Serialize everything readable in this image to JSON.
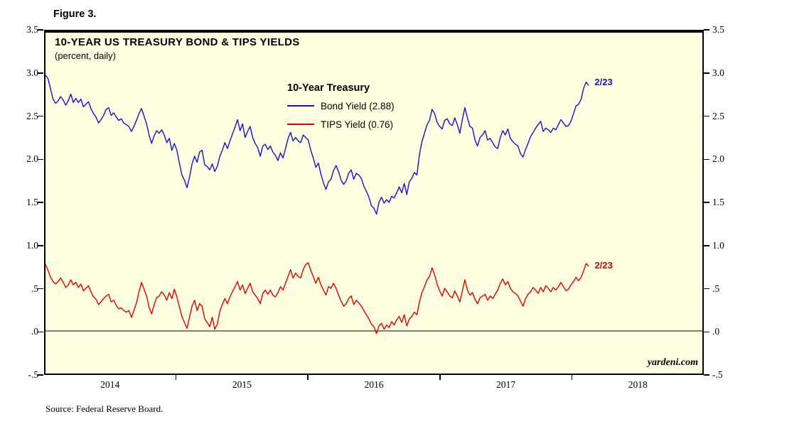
{
  "figure_label": "Figure 3.",
  "source": "Source: Federal Reserve Board.",
  "watermark": "yardeni.com",
  "chart_data": {
    "type": "line",
    "title": "10-YEAR US TREASURY BOND & TIPS YIELDS",
    "subtitle": "(percent, daily)",
    "legend_title": "10-Year Treasury",
    "legend_position": "top-center",
    "grid": false,
    "plot_bg": "#FFFFE2",
    "x_domain": [
      2014.0,
      2019.0
    ],
    "y_domain": [
      -0.5,
      3.5
    ],
    "x_start": 2014.0,
    "x_step": 0.019231,
    "y_ticks": [
      "3.5",
      "3.0",
      "2.5",
      "2.0",
      "1.5",
      "1.0",
      ".5",
      ".0",
      "-.5"
    ],
    "y_tick_values": [
      3.5,
      3.0,
      2.5,
      2.0,
      1.5,
      1.0,
      0.5,
      0.0,
      -0.5
    ],
    "x_tick_labels": [
      "2014",
      "2015",
      "2016",
      "2017",
      "2018"
    ],
    "x_tick_centers": [
      2014.5,
      2015.5,
      2016.5,
      2017.5,
      2018.5
    ],
    "zero_line": 0.0,
    "series": [
      {
        "name": "Bond Yield (2.88)",
        "color": "#1212CC",
        "end_label": "2/23",
        "last_value": 2.88,
        "values": [
          3.0,
          2.96,
          2.84,
          2.72,
          2.67,
          2.7,
          2.75,
          2.71,
          2.65,
          2.7,
          2.78,
          2.68,
          2.73,
          2.68,
          2.72,
          2.63,
          2.66,
          2.69,
          2.61,
          2.55,
          2.51,
          2.44,
          2.48,
          2.53,
          2.6,
          2.62,
          2.53,
          2.56,
          2.51,
          2.47,
          2.49,
          2.44,
          2.42,
          2.4,
          2.34,
          2.4,
          2.47,
          2.55,
          2.61,
          2.52,
          2.43,
          2.3,
          2.2,
          2.29,
          2.35,
          2.32,
          2.36,
          2.3,
          2.21,
          2.26,
          2.12,
          2.2,
          2.12,
          1.97,
          1.83,
          1.77,
          1.68,
          1.8,
          1.96,
          2.05,
          1.98,
          2.1,
          2.12,
          1.95,
          1.93,
          1.89,
          1.96,
          1.87,
          1.93,
          2.05,
          2.12,
          2.21,
          2.14,
          2.23,
          2.31,
          2.39,
          2.48,
          2.35,
          2.43,
          2.27,
          2.34,
          2.4,
          2.27,
          2.2,
          2.15,
          2.05,
          2.17,
          2.19,
          2.13,
          2.17,
          2.1,
          2.06,
          2.0,
          2.09,
          2.03,
          2.14,
          2.26,
          2.33,
          2.23,
          2.27,
          2.23,
          2.21,
          2.3,
          2.27,
          2.24,
          2.12,
          2.03,
          1.92,
          1.97,
          1.84,
          1.74,
          1.66,
          1.75,
          1.78,
          1.88,
          1.94,
          1.87,
          1.77,
          1.72,
          1.76,
          1.85,
          1.89,
          1.78,
          1.85,
          1.83,
          1.79,
          1.7,
          1.64,
          1.57,
          1.47,
          1.44,
          1.37,
          1.51,
          1.57,
          1.5,
          1.54,
          1.51,
          1.58,
          1.56,
          1.62,
          1.69,
          1.62,
          1.73,
          1.6,
          1.75,
          1.79,
          1.86,
          1.83,
          2.07,
          2.22,
          2.32,
          2.42,
          2.47,
          2.6,
          2.55,
          2.45,
          2.4,
          2.37,
          2.47,
          2.49,
          2.43,
          2.41,
          2.5,
          2.42,
          2.32,
          2.48,
          2.62,
          2.5,
          2.4,
          2.38,
          2.24,
          2.17,
          2.27,
          2.3,
          2.35,
          2.24,
          2.26,
          2.21,
          2.16,
          2.14,
          2.27,
          2.35,
          2.3,
          2.37,
          2.26,
          2.22,
          2.19,
          2.17,
          2.08,
          2.04,
          2.13,
          2.2,
          2.28,
          2.33,
          2.38,
          2.42,
          2.46,
          2.34,
          2.38,
          2.36,
          2.33,
          2.38,
          2.36,
          2.42,
          2.48,
          2.44,
          2.4,
          2.41,
          2.46,
          2.55,
          2.64,
          2.66,
          2.72,
          2.85,
          2.92,
          2.88
        ]
      },
      {
        "name": "TIPS Yield (0.76)",
        "color": "#E00000",
        "end_label": "2/23",
        "last_value": 0.76,
        "values": [
          0.78,
          0.71,
          0.63,
          0.58,
          0.55,
          0.58,
          0.62,
          0.57,
          0.51,
          0.54,
          0.6,
          0.54,
          0.57,
          0.51,
          0.55,
          0.47,
          0.5,
          0.53,
          0.46,
          0.4,
          0.37,
          0.31,
          0.34,
          0.38,
          0.41,
          0.43,
          0.34,
          0.36,
          0.3,
          0.26,
          0.27,
          0.24,
          0.22,
          0.24,
          0.16,
          0.24,
          0.33,
          0.46,
          0.57,
          0.49,
          0.41,
          0.28,
          0.2,
          0.31,
          0.39,
          0.41,
          0.46,
          0.42,
          0.36,
          0.45,
          0.38,
          0.49,
          0.4,
          0.28,
          0.17,
          0.1,
          0.03,
          0.16,
          0.29,
          0.36,
          0.24,
          0.32,
          0.29,
          0.14,
          0.1,
          0.05,
          0.16,
          0.02,
          0.08,
          0.23,
          0.31,
          0.38,
          0.32,
          0.4,
          0.46,
          0.52,
          0.58,
          0.48,
          0.54,
          0.44,
          0.5,
          0.56,
          0.46,
          0.42,
          0.38,
          0.32,
          0.44,
          0.48,
          0.43,
          0.48,
          0.42,
          0.4,
          0.45,
          0.52,
          0.48,
          0.56,
          0.64,
          0.72,
          0.62,
          0.68,
          0.64,
          0.62,
          0.72,
          0.78,
          0.8,
          0.71,
          0.64,
          0.56,
          0.63,
          0.54,
          0.48,
          0.42,
          0.52,
          0.5,
          0.56,
          0.5,
          0.42,
          0.35,
          0.29,
          0.32,
          0.38,
          0.41,
          0.31,
          0.36,
          0.33,
          0.29,
          0.24,
          0.19,
          0.14,
          0.08,
          0.05,
          -0.03,
          0.06,
          0.09,
          0.02,
          0.07,
          0.04,
          0.11,
          0.07,
          0.13,
          0.17,
          0.1,
          0.19,
          0.06,
          0.14,
          0.17,
          0.22,
          0.19,
          0.34,
          0.45,
          0.52,
          0.6,
          0.64,
          0.74,
          0.66,
          0.55,
          0.47,
          0.41,
          0.5,
          0.46,
          0.41,
          0.39,
          0.47,
          0.41,
          0.34,
          0.47,
          0.6,
          0.48,
          0.42,
          0.45,
          0.37,
          0.32,
          0.39,
          0.41,
          0.43,
          0.36,
          0.41,
          0.38,
          0.43,
          0.48,
          0.56,
          0.61,
          0.54,
          0.58,
          0.5,
          0.46,
          0.44,
          0.41,
          0.35,
          0.29,
          0.38,
          0.43,
          0.46,
          0.51,
          0.48,
          0.44,
          0.51,
          0.46,
          0.53,
          0.5,
          0.46,
          0.51,
          0.48,
          0.52,
          0.57,
          0.52,
          0.47,
          0.49,
          0.54,
          0.58,
          0.63,
          0.59,
          0.63,
          0.71,
          0.79,
          0.76
        ]
      }
    ]
  }
}
